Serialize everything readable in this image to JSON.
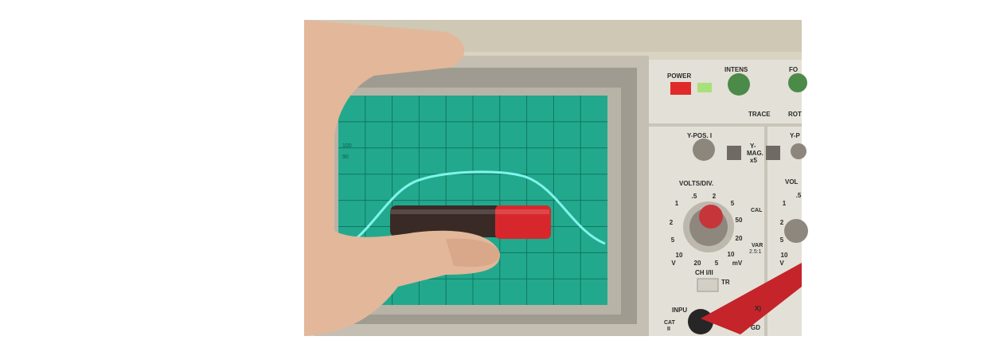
{
  "screen": {
    "graticule_labels": [
      "100",
      "90"
    ]
  },
  "panel": {
    "power": "POWER",
    "intens": "INTENS",
    "focus": "FO",
    "trace_rotation": "TRACE",
    "rot": "ROT",
    "y_pos_1": "Y-POS. I",
    "y_pos_2": "Y-P",
    "y_mag": "Y-",
    "mag": "MAG.",
    "x5": "x5",
    "volts_div": "VOLTS/DIV.",
    "volts_div_2": "VOL",
    "cal": "CAL",
    "var": "VAR",
    "var_ratio": "2.5:1",
    "ch": "CH I/II",
    "tr": "TR",
    "input": "INPU",
    "xi": "X)",
    "cat": "CAT",
    "cat_level": "II",
    "gd": "GD",
    "dial_labels": [
      ".5",
      "2",
      "1",
      "5",
      "2",
      "50",
      "5",
      "20",
      "10",
      "10",
      "V",
      "20",
      "5",
      "mV"
    ],
    "dial_labels_right": [
      ".5",
      "1",
      "2",
      "5",
      "10",
      "V"
    ]
  }
}
